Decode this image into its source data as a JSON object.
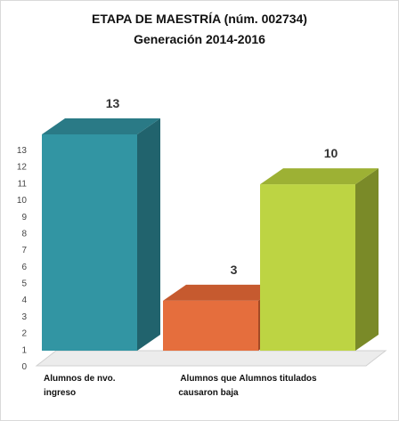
{
  "chart_data": {
    "type": "bar",
    "title": "ETAPA DE MAESTRÍA (núm. 002734)",
    "subtitle": "Generación 2014-2016",
    "categories": [
      "Alumnos de nvo. ingreso",
      "Alumnos que causaron baja",
      "Alumnos titulados"
    ],
    "values": [
      13,
      3,
      10
    ],
    "data_labels": [
      "13",
      "3",
      "10"
    ],
    "ylim": [
      0,
      13
    ],
    "yticks": [
      0,
      1,
      2,
      3,
      4,
      5,
      6,
      7,
      8,
      9,
      10,
      11,
      12,
      13
    ],
    "grid": false,
    "legend": "none",
    "style": "3d-column",
    "colors": [
      {
        "front": "#3295A3",
        "side": "#21636D",
        "top": "#2A7A86"
      },
      {
        "front": "#E56E3D",
        "side": "#A34A25",
        "top": "#C65A2F"
      },
      {
        "front": "#BDD443",
        "side": "#7A8A28",
        "top": "#9DB134"
      }
    ]
  }
}
